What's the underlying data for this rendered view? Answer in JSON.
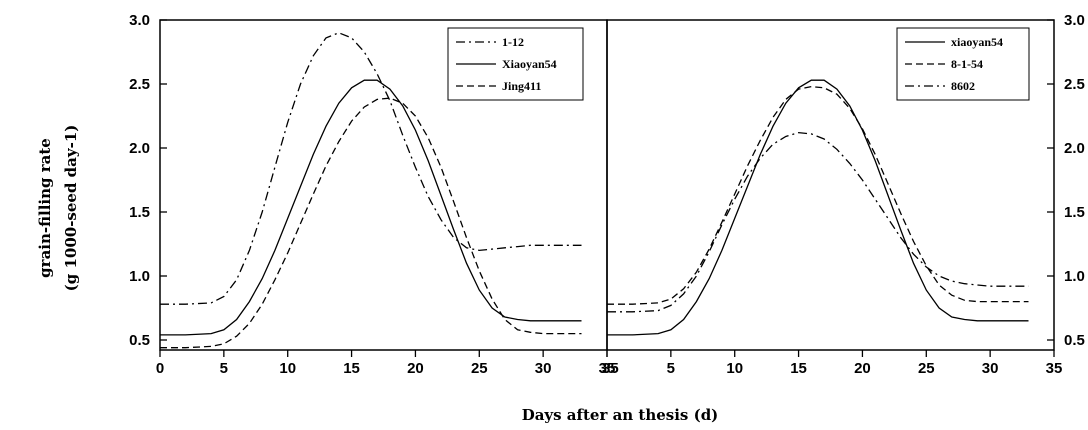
{
  "ylabel_line1": "grain-filling rate",
  "ylabel_line2": "(g 1000-seed day-1)",
  "xlabel": "Days after an thesis (d)",
  "chart_data": [
    {
      "type": "line",
      "panel": "left",
      "xlim": [
        0,
        35
      ],
      "ylim": [
        0.4,
        3.0
      ],
      "x_ticks": [
        "0",
        "5",
        "10",
        "15",
        "20",
        "25",
        "30",
        "35"
      ],
      "y_ticks": [
        "0.5",
        "1.0",
        "1.5",
        "2.0",
        "2.5",
        "3.0"
      ],
      "y_axis_side": "left",
      "legend_position": "top-right",
      "series": [
        {
          "name": "1-12",
          "dash": "dashdot",
          "x": [
            0,
            2,
            4,
            5,
            6,
            7,
            8,
            9,
            10,
            11,
            12,
            13,
            14,
            15,
            16,
            17,
            18,
            19,
            20,
            21,
            22,
            23,
            24,
            25,
            26,
            27,
            28,
            29,
            30,
            31,
            32,
            33
          ],
          "y": [
            0.78,
            0.78,
            0.79,
            0.84,
            0.97,
            1.2,
            1.5,
            1.85,
            2.2,
            2.5,
            2.72,
            2.86,
            2.9,
            2.86,
            2.75,
            2.58,
            2.37,
            2.1,
            1.85,
            1.62,
            1.44,
            1.3,
            1.22,
            1.2,
            1.21,
            1.22,
            1.23,
            1.24,
            1.24,
            1.24,
            1.24,
            1.24
          ]
        },
        {
          "name": "Xiaoyan54",
          "dash": "solid",
          "x": [
            0,
            2,
            4,
            5,
            6,
            7,
            8,
            9,
            10,
            11,
            12,
            13,
            14,
            15,
            16,
            17,
            18,
            19,
            20,
            21,
            22,
            23,
            24,
            25,
            26,
            27,
            28,
            29,
            30,
            31,
            32,
            33
          ],
          "y": [
            0.54,
            0.54,
            0.55,
            0.58,
            0.66,
            0.8,
            0.98,
            1.2,
            1.45,
            1.7,
            1.95,
            2.17,
            2.35,
            2.47,
            2.53,
            2.53,
            2.46,
            2.33,
            2.14,
            1.9,
            1.63,
            1.36,
            1.1,
            0.89,
            0.75,
            0.68,
            0.66,
            0.65,
            0.65,
            0.65,
            0.65,
            0.65
          ]
        },
        {
          "name": "Jing411",
          "dash": "dashed",
          "x": [
            0,
            2,
            4,
            5,
            6,
            7,
            8,
            9,
            10,
            11,
            12,
            13,
            14,
            15,
            16,
            17,
            18,
            19,
            20,
            21,
            22,
            23,
            24,
            25,
            26,
            27,
            28,
            29,
            30,
            31,
            32,
            33
          ],
          "y": [
            0.44,
            0.44,
            0.45,
            0.47,
            0.53,
            0.63,
            0.78,
            0.97,
            1.18,
            1.41,
            1.64,
            1.86,
            2.05,
            2.21,
            2.32,
            2.38,
            2.39,
            2.35,
            2.25,
            2.08,
            1.85,
            1.58,
            1.3,
            1.04,
            0.82,
            0.66,
            0.58,
            0.56,
            0.55,
            0.55,
            0.55,
            0.55
          ]
        }
      ]
    },
    {
      "type": "line",
      "panel": "right",
      "xlim": [
        0,
        35
      ],
      "ylim": [
        0.4,
        3.0
      ],
      "x_ticks": [
        "5",
        "10",
        "15",
        "20",
        "25",
        "30",
        "35"
      ],
      "first_x_tick_merged": "35",
      "y_ticks": [
        "0.5",
        "1.0",
        "1.5",
        "2.0",
        "2.5",
        "3.0"
      ],
      "y_axis_side": "right",
      "legend_position": "top-right",
      "series": [
        {
          "name": "xiaoyan54",
          "dash": "solid",
          "x": [
            0,
            2,
            4,
            5,
            6,
            7,
            8,
            9,
            10,
            11,
            12,
            13,
            14,
            15,
            16,
            17,
            18,
            19,
            20,
            21,
            22,
            23,
            24,
            25,
            26,
            27,
            28,
            29,
            30,
            31,
            32,
            33
          ],
          "y": [
            0.54,
            0.54,
            0.55,
            0.58,
            0.66,
            0.8,
            0.98,
            1.2,
            1.45,
            1.7,
            1.95,
            2.17,
            2.35,
            2.47,
            2.53,
            2.53,
            2.46,
            2.33,
            2.14,
            1.9,
            1.63,
            1.36,
            1.1,
            0.89,
            0.75,
            0.68,
            0.66,
            0.65,
            0.65,
            0.65,
            0.65,
            0.65
          ]
        },
        {
          "name": "8-1-54",
          "dash": "dashed",
          "x": [
            0,
            2,
            4,
            5,
            6,
            7,
            8,
            9,
            10,
            11,
            12,
            13,
            14,
            15,
            16,
            17,
            18,
            19,
            20,
            21,
            22,
            23,
            24,
            25,
            26,
            27,
            28,
            29,
            30,
            31,
            32,
            33
          ],
          "y": [
            0.78,
            0.78,
            0.79,
            0.82,
            0.9,
            1.03,
            1.21,
            1.42,
            1.64,
            1.86,
            2.06,
            2.24,
            2.38,
            2.46,
            2.48,
            2.47,
            2.42,
            2.31,
            2.15,
            1.95,
            1.72,
            1.49,
            1.27,
            1.08,
            0.93,
            0.85,
            0.81,
            0.8,
            0.8,
            0.8,
            0.8,
            0.8
          ]
        },
        {
          "name": "8602",
          "dash": "dashdot",
          "x": [
            0,
            2,
            4,
            5,
            6,
            7,
            8,
            9,
            10,
            11,
            12,
            13,
            14,
            15,
            16,
            17,
            18,
            19,
            20,
            21,
            22,
            23,
            24,
            25,
            26,
            27,
            28,
            29,
            30,
            31,
            32,
            33
          ],
          "y": [
            0.72,
            0.72,
            0.73,
            0.77,
            0.86,
            1.0,
            1.19,
            1.4,
            1.6,
            1.78,
            1.92,
            2.03,
            2.09,
            2.12,
            2.11,
            2.07,
            1.99,
            1.88,
            1.75,
            1.6,
            1.45,
            1.3,
            1.17,
            1.07,
            1.0,
            0.96,
            0.94,
            0.93,
            0.92,
            0.92,
            0.92,
            0.92
          ]
        }
      ]
    }
  ]
}
